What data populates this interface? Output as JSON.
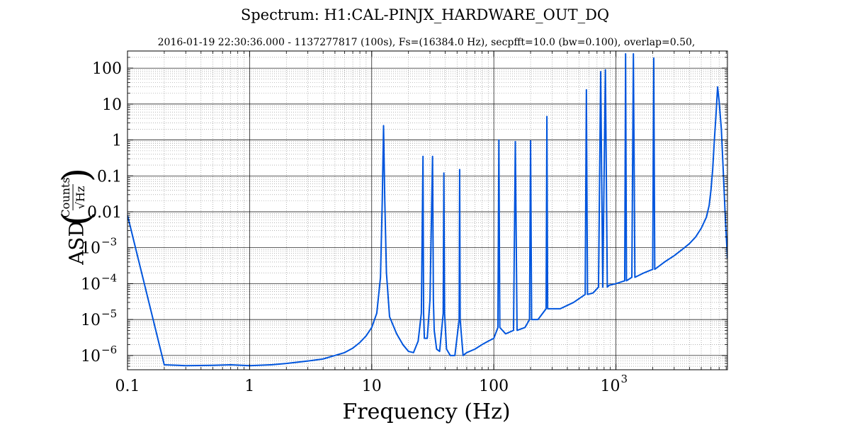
{
  "chart_data": {
    "type": "line",
    "title": "Spectrum: H1:CAL-PINJX_HARDWARE_OUT_DQ",
    "subtitle": "2016-01-19 22:30:36.000 - 1137277817 (100s), Fs=(16384.0 Hz), secpfft=10.0 (bw=0.100), overlap=0.50,",
    "xlabel": "Frequency (Hz)",
    "ylabel": {
      "prefix": "ASD",
      "numerator": "Counts",
      "denominator": "√Hz"
    },
    "xscale": "log",
    "yscale": "log",
    "xlim": [
      0.1,
      8192
    ],
    "ylim": [
      4e-07,
      300
    ],
    "grid": "major-and-minor",
    "x_ticks": [
      {
        "value": 0.1,
        "label": "0.1"
      },
      {
        "value": 1,
        "label": "1"
      },
      {
        "value": 10,
        "label": "10"
      },
      {
        "value": 100,
        "label": "100"
      },
      {
        "value": 1000,
        "label": "10",
        "exp": "3"
      }
    ],
    "y_ticks": [
      {
        "value": 1e-06,
        "label": "10",
        "exp": "−6"
      },
      {
        "value": 1e-05,
        "label": "10",
        "exp": "−5"
      },
      {
        "value": 0.0001,
        "label": "10",
        "exp": "−4"
      },
      {
        "value": 0.001,
        "label": "10",
        "exp": "−3"
      },
      {
        "value": 0.01,
        "label": "0.01"
      },
      {
        "value": 0.1,
        "label": "0.1"
      },
      {
        "value": 1,
        "label": "1"
      },
      {
        "value": 10,
        "label": "10"
      },
      {
        "value": 100,
        "label": "100"
      }
    ],
    "series": [
      {
        "color": "#0055dd",
        "x": [
          0.1,
          0.2,
          0.3,
          0.5,
          0.7,
          1.0,
          1.5,
          2.0,
          3.0,
          4.0,
          5.0,
          6.0,
          7.0,
          8.0,
          9.0,
          10.0,
          11.0,
          11.8,
          12.2,
          12.5,
          12.8,
          13.2,
          14.0,
          16.0,
          18.0,
          20.0,
          22.0,
          24.0,
          25.5,
          26.3,
          26.6,
          27.0,
          28.5,
          30.0,
          31.5,
          32.0,
          32.5,
          34.0,
          36.0,
          38.5,
          39.0,
          39.5,
          41.0,
          44.0,
          48.0,
          52.0,
          52.5,
          53.0,
          56.0,
          60.0,
          70.0,
          80.0,
          90.0,
          100.0,
          108.0,
          110.0,
          112.0,
          125.0,
          145.0,
          150.0,
          155.0,
          180.0,
          196.0,
          200.0,
          204.0,
          230.0,
          268.0,
          272.0,
          276.0,
          350.0,
          450.0,
          560.0,
          573.0,
          585.0,
          650.0,
          720.0,
          750.0,
          780.0,
          820.0,
          850.0,
          880.0,
          1000.0,
          1180.0,
          1200.0,
          1220.0,
          1350.0,
          1390.0,
          1430.0,
          1700.0,
          2000.0,
          2040.0,
          2080.0,
          2500.0,
          3000.0,
          3500.0,
          4000.0,
          4500.0,
          5000.0,
          5500.0,
          5800.0,
          6000.0,
          6200.0,
          6400.0,
          6600.0,
          6800.0,
          7000.0,
          7300.0,
          7600.0,
          7900.0,
          8192.0
        ],
        "y": [
          0.008,
          5.5e-07,
          5.2e-07,
          5.3e-07,
          5.5e-07,
          5.2e-07,
          5.5e-07,
          6e-07,
          7e-07,
          8e-07,
          1e-06,
          1.2e-06,
          1.6e-06,
          2.3e-06,
          3.5e-06,
          6e-06,
          1.5e-05,
          0.00015,
          0.02,
          2.5,
          0.02,
          0.0002,
          1.2e-05,
          4e-06,
          2e-06,
          1.3e-06,
          1.2e-06,
          2.5e-06,
          1.5e-05,
          0.35,
          1.5e-05,
          3e-06,
          3e-06,
          3.5e-05,
          0.35,
          3.5e-05,
          5e-06,
          1.5e-06,
          1.3e-06,
          1.5e-05,
          0.12,
          1.5e-05,
          1.5e-06,
          1e-06,
          1e-06,
          1e-05,
          0.15,
          1e-05,
          1e-06,
          1.2e-06,
          1.5e-06,
          2e-06,
          2.5e-06,
          3e-06,
          6e-06,
          1.0,
          6e-06,
          4e-06,
          5e-06,
          0.9,
          5e-06,
          6e-06,
          1e-05,
          0.95,
          1e-05,
          1e-05,
          2e-05,
          4.5,
          2e-05,
          2e-05,
          3e-05,
          5e-05,
          25.0,
          5e-05,
          5.5e-05,
          8e-05,
          80.0,
          8e-05,
          90.0,
          8e-05,
          9e-05,
          0.0001,
          0.00012,
          250.0,
          0.00012,
          0.00015,
          250.0,
          0.00015,
          0.0002,
          0.00025,
          190.0,
          0.00025,
          0.0004,
          0.0006,
          0.0009,
          0.0013,
          0.002,
          0.0035,
          0.007,
          0.015,
          0.04,
          0.15,
          1.0,
          5.0,
          30.0,
          12.0,
          2.0,
          0.1,
          0.005,
          0.0005
        ]
      }
    ]
  }
}
